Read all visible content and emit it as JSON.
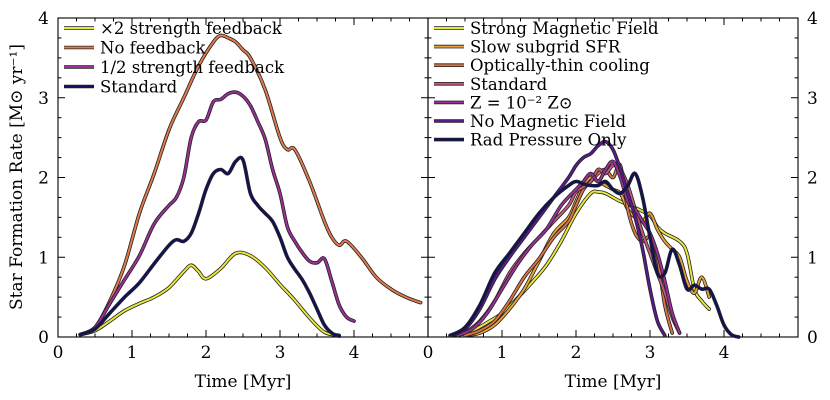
{
  "chart_data": [
    {
      "type": "line",
      "panel": "left",
      "xlabel": "Time [Myr]",
      "ylabel": "Star Formation Rate [M⊙ yr⁻¹]",
      "xlim": [
        0,
        5
      ],
      "ylim": [
        0,
        4
      ],
      "xticks": [
        "0",
        "1",
        "2",
        "3",
        "4"
      ],
      "yticks": [
        "0",
        "1",
        "2",
        "3",
        "4"
      ],
      "legend_position": "top-left",
      "series": [
        {
          "name": "×2 strength feedback",
          "color": "#e8e83c",
          "x": [
            0.3,
            0.5,
            0.7,
            0.9,
            1.1,
            1.3,
            1.5,
            1.7,
            1.8,
            1.9,
            2.0,
            2.2,
            2.4,
            2.6,
            2.8,
            3.0,
            3.2,
            3.4,
            3.6,
            3.8
          ],
          "y": [
            0.03,
            0.08,
            0.2,
            0.33,
            0.42,
            0.5,
            0.62,
            0.82,
            0.9,
            0.82,
            0.73,
            0.86,
            1.05,
            1.02,
            0.87,
            0.66,
            0.46,
            0.24,
            0.06,
            0.02
          ]
        },
        {
          "name": "No feedback",
          "color": "#e07a4e",
          "x": [
            0.3,
            0.5,
            0.7,
            0.9,
            1.1,
            1.3,
            1.5,
            1.7,
            1.9,
            2.1,
            2.2,
            2.3,
            2.4,
            2.5,
            2.6,
            2.8,
            3.0,
            3.1,
            3.2,
            3.4,
            3.6,
            3.7,
            3.8,
            3.9,
            4.1,
            4.3,
            4.5,
            4.7,
            4.9
          ],
          "y": [
            0.03,
            0.12,
            0.45,
            0.9,
            1.55,
            2.05,
            2.6,
            3.0,
            3.4,
            3.7,
            3.78,
            3.75,
            3.7,
            3.6,
            3.5,
            3.1,
            2.5,
            2.35,
            2.35,
            1.95,
            1.45,
            1.25,
            1.15,
            1.2,
            1.0,
            0.75,
            0.6,
            0.5,
            0.43
          ]
        },
        {
          "name": "1/2 strength feedback",
          "color": "#9a2f98",
          "x": [
            0.3,
            0.5,
            0.7,
            0.9,
            1.1,
            1.3,
            1.5,
            1.6,
            1.7,
            1.8,
            1.9,
            2.0,
            2.1,
            2.2,
            2.3,
            2.4,
            2.5,
            2.6,
            2.7,
            2.8,
            2.9,
            3.0,
            3.1,
            3.2,
            3.3,
            3.4,
            3.5,
            3.6,
            3.7,
            3.8,
            3.9,
            4.0
          ],
          "y": [
            0.03,
            0.12,
            0.42,
            0.72,
            1.02,
            1.42,
            1.65,
            1.75,
            2.0,
            2.5,
            2.7,
            2.72,
            2.95,
            2.98,
            3.05,
            3.07,
            3.02,
            2.9,
            2.7,
            2.48,
            2.1,
            1.8,
            1.38,
            1.2,
            1.06,
            0.95,
            0.93,
            0.98,
            0.7,
            0.4,
            0.25,
            0.2
          ]
        },
        {
          "name": "Standard",
          "color": "#12125a",
          "x": [
            0.3,
            0.5,
            0.7,
            0.9,
            1.1,
            1.3,
            1.5,
            1.6,
            1.7,
            1.8,
            1.9,
            2.0,
            2.1,
            2.2,
            2.3,
            2.4,
            2.5,
            2.6,
            2.7,
            2.8,
            2.9,
            3.0,
            3.1,
            3.2,
            3.3,
            3.4,
            3.5,
            3.6,
            3.7,
            3.8
          ],
          "y": [
            0.03,
            0.1,
            0.3,
            0.5,
            0.68,
            0.92,
            1.15,
            1.22,
            1.2,
            1.3,
            1.55,
            1.85,
            2.05,
            2.1,
            2.05,
            2.2,
            2.22,
            1.8,
            1.65,
            1.55,
            1.45,
            1.25,
            1.0,
            0.85,
            0.72,
            0.55,
            0.35,
            0.15,
            0.05,
            0.01
          ]
        }
      ]
    },
    {
      "type": "line",
      "panel": "right",
      "xlabel": "Time [Myr]",
      "ylabel": "",
      "xlim": [
        0,
        5
      ],
      "ylim": [
        0,
        4
      ],
      "xticks": [
        "0",
        "1",
        "2",
        "3",
        "4"
      ],
      "yticks": [
        "0",
        "1",
        "2",
        "3",
        "4"
      ],
      "legend_position": "top-left",
      "series": [
        {
          "name": "Strong Magnetic Field",
          "color": "#e8e83c",
          "x": [
            0.4,
            0.6,
            0.8,
            1.0,
            1.2,
            1.4,
            1.6,
            1.8,
            2.0,
            2.2,
            2.3,
            2.4,
            2.5,
            2.6,
            2.8,
            3.0,
            3.1,
            3.2,
            3.4,
            3.5,
            3.6,
            3.7,
            3.8
          ],
          "y": [
            0.02,
            0.08,
            0.18,
            0.3,
            0.48,
            0.68,
            0.9,
            1.2,
            1.55,
            1.8,
            1.82,
            1.8,
            1.75,
            1.7,
            1.62,
            1.52,
            1.38,
            1.3,
            1.2,
            1.05,
            0.6,
            0.45,
            0.35
          ]
        },
        {
          "name": "Slow subgrid SFR",
          "color": "#e8a23a",
          "x": [
            0.5,
            0.7,
            0.9,
            1.1,
            1.3,
            1.5,
            1.7,
            1.9,
            2.0,
            2.1,
            2.2,
            2.3,
            2.4,
            2.5,
            2.6,
            2.7,
            2.8,
            2.9,
            3.0,
            3.1,
            3.2,
            3.3,
            3.4,
            3.5,
            3.6,
            3.7,
            3.8
          ],
          "y": [
            0.02,
            0.05,
            0.15,
            0.35,
            0.6,
            0.95,
            1.3,
            1.5,
            1.7,
            1.9,
            2.0,
            1.95,
            1.9,
            1.85,
            1.8,
            1.6,
            1.5,
            1.45,
            1.55,
            1.35,
            1.2,
            1.1,
            1.0,
            0.7,
            0.55,
            0.75,
            0.5
          ]
        },
        {
          "name": "Optically-thin cooling",
          "color": "#d97344",
          "x": [
            0.5,
            0.7,
            0.9,
            1.1,
            1.3,
            1.5,
            1.7,
            1.9,
            2.0,
            2.1,
            2.2,
            2.3,
            2.4,
            2.5,
            2.6,
            2.7,
            2.8,
            2.9,
            3.0,
            3.1,
            3.2,
            3.3
          ],
          "y": [
            0.02,
            0.08,
            0.2,
            0.45,
            0.75,
            0.98,
            1.25,
            1.45,
            1.65,
            1.85,
            1.95,
            2.05,
            2.1,
            2.0,
            2.15,
            1.6,
            1.3,
            1.2,
            1.25,
            1.0,
            0.4,
            0.05
          ]
        },
        {
          "name": "Standard",
          "color": "#c25b7a",
          "x": [
            0.3,
            0.5,
            0.7,
            0.9,
            1.1,
            1.3,
            1.5,
            1.7,
            1.9,
            2.0,
            2.1,
            2.2,
            2.3,
            2.4,
            2.5,
            2.6,
            2.7,
            2.8,
            2.9,
            3.0,
            3.1,
            3.2,
            3.3,
            3.4
          ],
          "y": [
            0.02,
            0.06,
            0.2,
            0.45,
            0.8,
            1.05,
            1.25,
            1.45,
            1.65,
            1.82,
            1.88,
            1.95,
            2.1,
            2.05,
            2.15,
            2.1,
            1.9,
            1.6,
            1.3,
            1.05,
            0.8,
            0.55,
            0.25,
            0.05
          ]
        },
        {
          "name": "Z = 10⁻² Z⊙",
          "color": "#9a2f98",
          "x": [
            0.4,
            0.6,
            0.8,
            1.0,
            1.2,
            1.4,
            1.6,
            1.8,
            2.0,
            2.1,
            2.2,
            2.3,
            2.4,
            2.5,
            2.6,
            2.7,
            2.8,
            2.9,
            3.0,
            3.1,
            3.2,
            3.3,
            3.4
          ],
          "y": [
            0.02,
            0.1,
            0.3,
            0.6,
            0.9,
            1.15,
            1.35,
            1.65,
            1.85,
            1.95,
            2.05,
            1.95,
            2.1,
            2.2,
            2.0,
            1.7,
            1.6,
            1.45,
            1.3,
            1.05,
            0.7,
            0.3,
            0.05
          ]
        },
        {
          "name": "No Magnetic Field",
          "color": "#5a1a8c",
          "x": [
            0.3,
            0.5,
            0.7,
            0.9,
            1.1,
            1.3,
            1.5,
            1.7,
            1.9,
            2.0,
            2.1,
            2.2,
            2.3,
            2.4,
            2.5,
            2.6,
            2.7,
            2.8,
            2.9,
            3.0,
            3.1,
            3.2
          ],
          "y": [
            0.02,
            0.1,
            0.35,
            0.72,
            1.0,
            1.25,
            1.5,
            1.75,
            2.0,
            2.15,
            2.25,
            2.3,
            2.4,
            2.45,
            2.35,
            2.1,
            1.8,
            1.5,
            1.1,
            0.6,
            0.2,
            0.02
          ]
        },
        {
          "name": "Rad Pressure Only",
          "color": "#12125a",
          "x": [
            0.3,
            0.5,
            0.7,
            0.9,
            1.1,
            1.3,
            1.5,
            1.7,
            1.9,
            2.0,
            2.1,
            2.2,
            2.3,
            2.4,
            2.5,
            2.6,
            2.7,
            2.8,
            2.9,
            3.0,
            3.1,
            3.2,
            3.3,
            3.4,
            3.5,
            3.6,
            3.7,
            3.8,
            3.9,
            4.0,
            4.1,
            4.2
          ],
          "y": [
            0.02,
            0.12,
            0.4,
            0.8,
            1.05,
            1.3,
            1.55,
            1.75,
            1.9,
            1.95,
            1.92,
            1.9,
            1.9,
            1.95,
            1.85,
            1.8,
            1.9,
            2.05,
            1.75,
            1.25,
            0.8,
            0.8,
            1.1,
            0.9,
            0.6,
            0.65,
            0.6,
            0.6,
            0.4,
            0.15,
            0.03,
            0.0
          ]
        }
      ]
    }
  ]
}
